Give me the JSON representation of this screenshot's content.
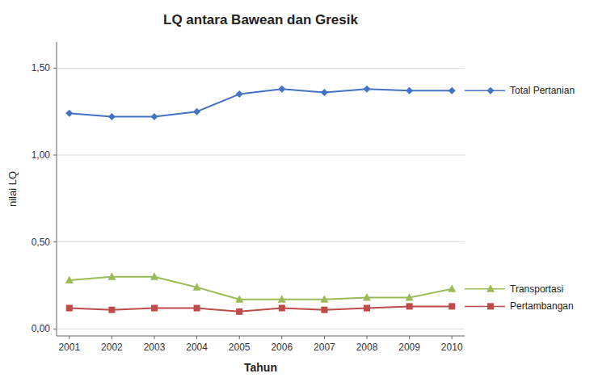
{
  "chart_data": {
    "type": "line",
    "title": "LQ antara Bawean dan Gresik",
    "x_label": "Tahun",
    "y_label": "nilai LQ",
    "x": [
      2001,
      2002,
      2003,
      2004,
      2005,
      2006,
      2007,
      2008,
      2009,
      2010
    ],
    "xlim": [
      2000.7,
      2010.3
    ],
    "xticks": [
      2001,
      2002,
      2003,
      2004,
      2005,
      2006,
      2007,
      2008,
      2009,
      2010
    ],
    "ylim": [
      -0.04,
      1.65
    ],
    "yticks": [
      {
        "value": 0.0,
        "label": "0,00"
      },
      {
        "value": 0.5,
        "label": "0,50"
      },
      {
        "value": 1.0,
        "label": "1,00"
      },
      {
        "value": 1.5,
        "label": "1,50"
      }
    ],
    "grid": true,
    "series": [
      {
        "name": "Total Pertanian",
        "color": "#4472C4",
        "marker": "diamond",
        "values": [
          1.24,
          1.22,
          1.22,
          1.25,
          1.35,
          1.38,
          1.36,
          1.38,
          1.37,
          1.37
        ]
      },
      {
        "name": "Pertambangan",
        "color": "#BE4B48",
        "marker": "square",
        "values": [
          0.12,
          0.11,
          0.12,
          0.12,
          0.1,
          0.12,
          0.11,
          0.12,
          0.13,
          0.13
        ]
      },
      {
        "name": "Transportasi",
        "color": "#9BBB59",
        "marker": "triangle",
        "values": [
          0.28,
          0.3,
          0.3,
          0.24,
          0.17,
          0.17,
          0.17,
          0.18,
          0.18,
          0.23
        ]
      }
    ]
  }
}
